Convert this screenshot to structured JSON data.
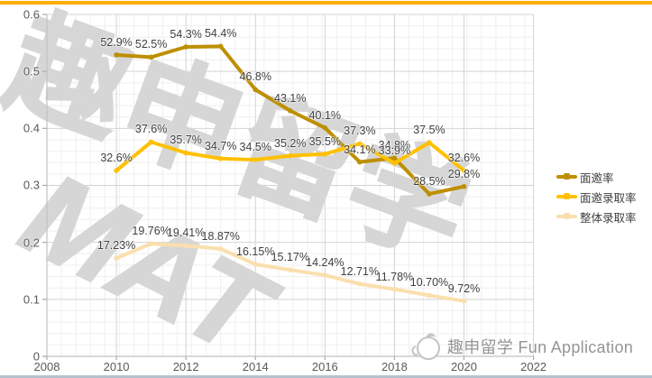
{
  "frame": {
    "top_bar_color": "#FFAE00",
    "bottom_bar_color": "#B3C2CB",
    "background_color": "#FFFFFF"
  },
  "watermark": {
    "line1": "趣申留学",
    "line2": "MAT",
    "color": "#D6D6D6"
  },
  "branding": {
    "logo": "chick-mascot",
    "text": "趣申留学 Fun Application"
  },
  "legend": {
    "position": "right",
    "items": [
      {
        "label": "面邀率",
        "color": "#BE8F00"
      },
      {
        "label": "面邀录取率",
        "color": "#FFC000"
      },
      {
        "label": "整体录取率",
        "color": "#FADFAE"
      }
    ]
  },
  "chart_data": {
    "type": "line",
    "x": [
      2010,
      2011,
      2012,
      2013,
      2014,
      2015,
      2016,
      2017,
      2018,
      2019,
      2020
    ],
    "x_axis": {
      "min": 2008,
      "max": 2022,
      "tick_labels": [
        "2008",
        "2010",
        "2012",
        "2014",
        "2016",
        "2018",
        "2020",
        "2022"
      ],
      "ticks": [
        2008,
        2010,
        2012,
        2014,
        2016,
        2018,
        2020,
        2022
      ]
    },
    "y_axis": {
      "min": 0,
      "max": 0.6,
      "major_unit": 0.1,
      "minor_unit": 0.02,
      "tick_labels": [
        "0",
        "0.1",
        "0.2",
        "0.3",
        "0.4",
        "0.5",
        "0.6"
      ]
    },
    "grid": true,
    "series": [
      {
        "name": "面邀率",
        "color": "#BE8F00",
        "values": [
          0.529,
          0.525,
          0.543,
          0.544,
          0.468,
          0.431,
          0.401,
          0.341,
          0.348,
          0.285,
          0.298
        ],
        "labels": [
          "52.9%",
          "52.5%",
          "54.3%",
          "54.4%",
          "46.8%",
          "43.1%",
          "40.1%",
          "34.1%",
          "34.8%",
          "28.5%",
          "29.8%"
        ]
      },
      {
        "name": "面邀录取率",
        "color": "#FFC000",
        "values": [
          0.326,
          0.376,
          0.357,
          0.347,
          0.345,
          0.352,
          0.355,
          0.373,
          0.339,
          0.375,
          0.326
        ],
        "labels": [
          "32.6%",
          "37.6%",
          "35.7%",
          "34.7%",
          "34.5%",
          "35.2%",
          "35.5%",
          "37.3%",
          "33.9%",
          "37.5%",
          "32.6%"
        ]
      },
      {
        "name": "整体录取率",
        "color": "#FADFAE",
        "values": [
          0.1723,
          0.1976,
          0.1941,
          0.1887,
          0.1615,
          0.1517,
          0.1424,
          0.1271,
          0.1178,
          0.107,
          0.0972
        ],
        "labels": [
          "17.23%",
          "19.76%",
          "19.41%",
          "18.87%",
          "16.15%",
          "15.17%",
          "14.24%",
          "12.71%",
          "11.78%",
          "10.70%",
          "9.72%"
        ]
      }
    ]
  }
}
